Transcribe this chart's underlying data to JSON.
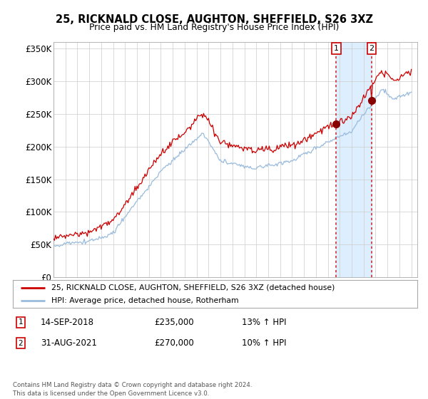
{
  "title": "25, RICKNALD CLOSE, AUGHTON, SHEFFIELD, S26 3XZ",
  "subtitle": "Price paid vs. HM Land Registry's House Price Index (HPI)",
  "legend_label_red": "25, RICKNALD CLOSE, AUGHTON, SHEFFIELD, S26 3XZ (detached house)",
  "legend_label_blue": "HPI: Average price, detached house, Rotherham",
  "transaction1_label": "1",
  "transaction1_date": "14-SEP-2018",
  "transaction1_price": "£235,000",
  "transaction1_hpi": "13% ↑ HPI",
  "transaction2_label": "2",
  "transaction2_date": "31-AUG-2021",
  "transaction2_price": "£270,000",
  "transaction2_hpi": "10% ↑ HPI",
  "footer": "Contains HM Land Registry data © Crown copyright and database right 2024.\nThis data is licensed under the Open Government Licence v3.0.",
  "ylim": [
    0,
    360000
  ],
  "yticks": [
    0,
    50000,
    100000,
    150000,
    200000,
    250000,
    300000,
    350000
  ],
  "ytick_labels": [
    "£0",
    "£50K",
    "£100K",
    "£150K",
    "£200K",
    "£250K",
    "£300K",
    "£350K"
  ],
  "xlim_start": 1995,
  "xlim_end": 2025.5,
  "vline1_x": 2018.708,
  "vline2_x": 2021.664,
  "marker1_price": 235000,
  "marker2_price": 270000,
  "background_color": "#ffffff",
  "grid_color": "#cccccc",
  "red_color": "#cc0000",
  "blue_color": "#99bbdd",
  "vline_color": "#cc3333",
  "highlight_color": "#ddeeff",
  "marker_color": "#880000"
}
